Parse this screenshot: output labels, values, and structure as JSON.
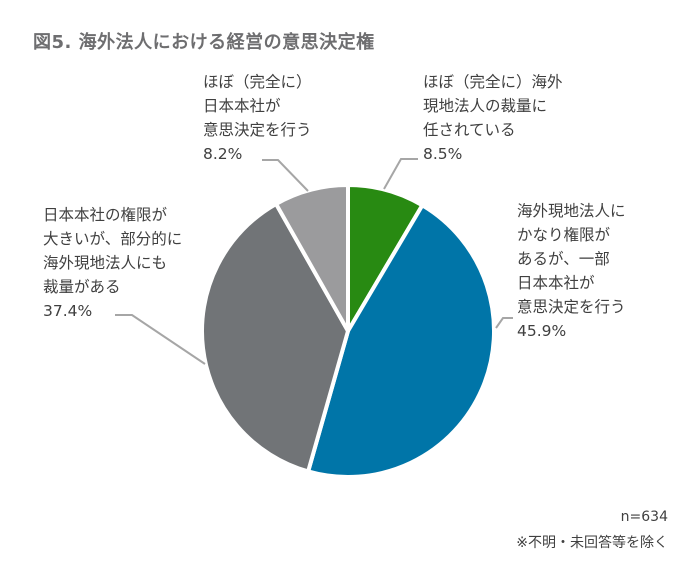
{
  "title": "図5. 海外法人における経営の意思決定権",
  "labels": {
    "top_left": {
      "lines": [
        "ほぼ（完全に）",
        "日本本社が",
        "意思決定を行う"
      ],
      "pct": "8.2%"
    },
    "top_right": {
      "lines": [
        "ほぼ（完全に）海外",
        "現地法人の裁量に",
        "任されている"
      ],
      "pct": "8.5%"
    },
    "left": {
      "lines": [
        "日本本社の権限が",
        "大きいが、部分的に",
        "海外現地法人にも",
        "裁量がある"
      ],
      "pct": "37.4%"
    },
    "right": {
      "lines": [
        "海外現地法人に",
        "かなり権限が",
        "あるが、一部",
        "日本本社が",
        "意思決定を行う"
      ],
      "pct": "45.9%"
    }
  },
  "footer": {
    "n": "n=634",
    "note": "※不明・未回答等を除く"
  },
  "colors": {
    "green": "#288a12",
    "blue": "#0075a8",
    "dark_gray": "#717477",
    "light_gray": "#9b9b9d",
    "leader": "#a6a6a6"
  },
  "chart_data": {
    "type": "pie",
    "title": "図5. 海外法人における経営の意思決定権",
    "categories": [
      "ほぼ（完全に）海外現地法人の裁量に任されている",
      "海外現地法人にかなり権限があるが、一部日本本社が意思決定を行う",
      "日本本社の権限が大きいが、部分的に海外現地法人にも裁量がある",
      "ほぼ（完全に）日本本社が意思決定を行う"
    ],
    "values": [
      8.5,
      45.9,
      37.4,
      8.2
    ],
    "unit": "%",
    "colors": [
      "#288a12",
      "#0075a8",
      "#717477",
      "#9b9b9d"
    ],
    "start_angle": "12 o'clock, clockwise",
    "sample_size": "n=634",
    "annotation": "※不明・未回答等を除く",
    "legend": "none (direct labels with leader lines)"
  }
}
